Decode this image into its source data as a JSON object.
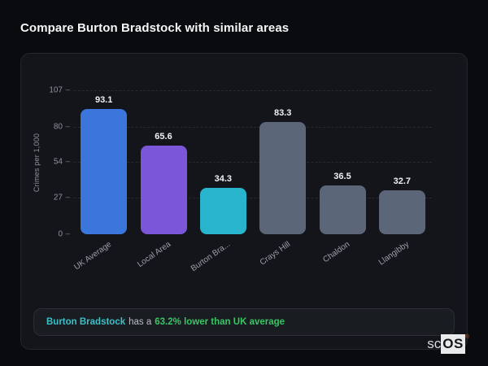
{
  "page": {
    "title": "Compare Burton Bradstock with similar areas"
  },
  "chart_data": {
    "type": "bar",
    "categories": [
      "UK Average",
      "Local Area",
      "Burton Bra...",
      "Crays Hill",
      "Chaldon",
      "Llangibby"
    ],
    "values": [
      93.1,
      65.6,
      34.3,
      83.3,
      36.5,
      32.7
    ],
    "value_labels": [
      "93.1",
      "65.6",
      "34.3",
      "83.3",
      "36.5",
      "32.7"
    ],
    "bar_colors": [
      "#3b76dd",
      "#7c56d9",
      "#29b4cd",
      "#5b6679",
      "#5b6679",
      "#5b6679"
    ],
    "title": "",
    "xlabel": "",
    "ylabel": "Crimes per 1,000",
    "yticks": [
      0,
      27,
      54,
      80,
      107
    ],
    "ylim": [
      0,
      107
    ],
    "grid": "horizontal-dashed",
    "legend": "none",
    "tick_mark": "–"
  },
  "note": {
    "highlight": "Burton Bradstock",
    "middle": "has a",
    "stat": "63.2% lower than UK average",
    "highlight_color": "#3ac0c9",
    "stat_color": "#36c763"
  },
  "logo": {
    "prefix": "sc",
    "suffix": "OS",
    "registered": "®"
  },
  "colors": {
    "page_background": "#0a0b0e",
    "card_background": "#13151a",
    "card_border": "#24272e",
    "gridline": "#272b31",
    "axis_text": "#8d939c",
    "value_text": "#eef0f2"
  }
}
